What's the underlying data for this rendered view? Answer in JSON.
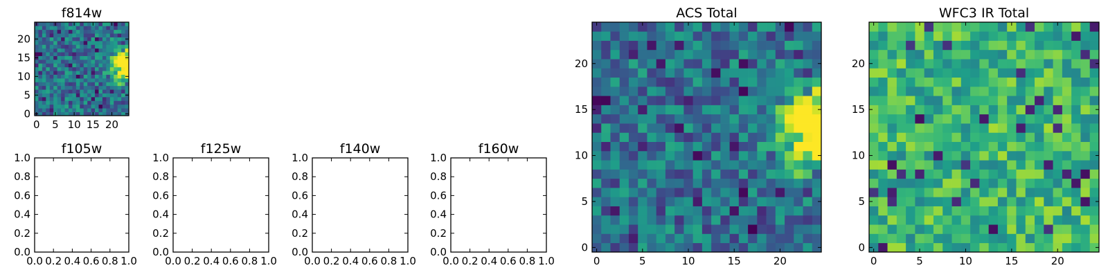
{
  "chart_data": [
    {
      "type": "heatmap",
      "title": "f814w",
      "x_ticks": [
        "0",
        "5",
        "10",
        "15",
        "20"
      ],
      "y_ticks": [
        "0",
        "5",
        "10",
        "15",
        "20"
      ],
      "xlim": [
        -0.5,
        24.5
      ],
      "ylim": [
        -0.5,
        24.5
      ],
      "grid_size": 25,
      "colormap": "viridis",
      "bright_region": {
        "x_center": 24,
        "y_center": 13,
        "sigma": 3.2
      },
      "noise_seed": 7
    },
    {
      "type": "empty",
      "title": "f105w",
      "x_ticks": [
        "0.0",
        "0.2",
        "0.4",
        "0.6",
        "0.8",
        "1.0"
      ],
      "y_ticks": [
        "0.0",
        "0.2",
        "0.4",
        "0.6",
        "0.8",
        "1.0"
      ],
      "xlim": [
        0,
        1
      ],
      "ylim": [
        0,
        1
      ]
    },
    {
      "type": "empty",
      "title": "f125w",
      "x_ticks": [
        "0.0",
        "0.2",
        "0.4",
        "0.6",
        "0.8",
        "1.0"
      ],
      "y_ticks": [
        "0.0",
        "0.2",
        "0.4",
        "0.6",
        "0.8",
        "1.0"
      ],
      "xlim": [
        0,
        1
      ],
      "ylim": [
        0,
        1
      ]
    },
    {
      "type": "empty",
      "title": "f140w",
      "x_ticks": [
        "0.0",
        "0.2",
        "0.4",
        "0.6",
        "0.8",
        "1.0"
      ],
      "y_ticks": [
        "0.0",
        "0.2",
        "0.4",
        "0.6",
        "0.8",
        "1.0"
      ],
      "xlim": [
        0,
        1
      ],
      "ylim": [
        0,
        1
      ]
    },
    {
      "type": "empty",
      "title": "f160w",
      "x_ticks": [
        "0.0",
        "0.2",
        "0.4",
        "0.6",
        "0.8",
        "1.0"
      ],
      "y_ticks": [
        "0.0",
        "0.2",
        "0.4",
        "0.6",
        "0.8",
        "1.0"
      ],
      "xlim": [
        0,
        1
      ],
      "ylim": [
        0,
        1
      ]
    },
    {
      "type": "heatmap",
      "title": "ACS Total",
      "x_ticks": [
        "0",
        "5",
        "10",
        "15",
        "20"
      ],
      "y_ticks": [
        "0",
        "5",
        "10",
        "15",
        "20"
      ],
      "xlim": [
        -0.5,
        24.5
      ],
      "ylim": [
        -0.5,
        24.5
      ],
      "grid_size": 25,
      "colormap": "viridis",
      "bright_region": {
        "x_center": 24,
        "y_center": 13,
        "sigma": 3.2
      },
      "noise_seed": 7
    },
    {
      "type": "heatmap",
      "title": "WFC3 IR Total",
      "x_ticks": [
        "0",
        "5",
        "10",
        "15",
        "20"
      ],
      "y_ticks": [
        "0",
        "5",
        "10",
        "15",
        "20"
      ],
      "xlim": [
        -0.5,
        24.5
      ],
      "ylim": [
        -0.5,
        24.5
      ],
      "grid_size": 25,
      "colormap": "viridis",
      "bright_region": null,
      "noise_seed": 31
    }
  ]
}
